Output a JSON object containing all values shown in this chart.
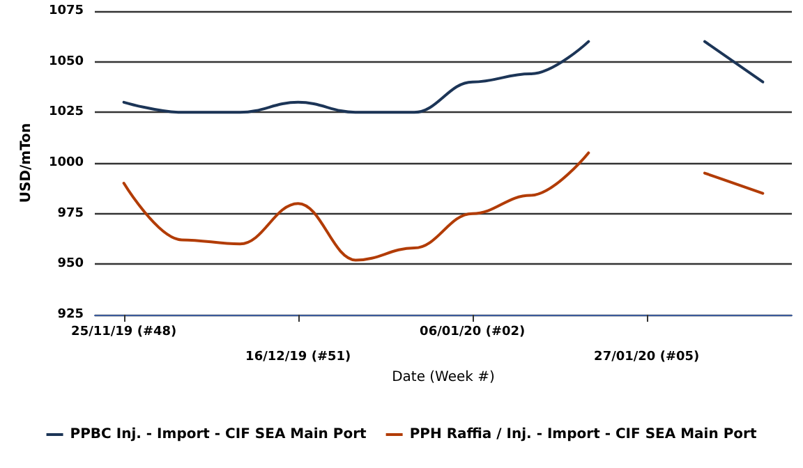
{
  "chart_data": {
    "type": "line",
    "xlabel": "Date (Week #)",
    "ylabel": "USD/mTon",
    "categories": [
      "25/11/19 (#48)",
      null,
      null,
      "16/12/19 (#51)",
      null,
      null,
      "06/01/20 (#02)",
      null,
      null,
      "27/01/20 (#05)",
      null,
      null
    ],
    "series": [
      {
        "name": "PPBC Inj. - Import - CIF SEA Main Port",
        "color": "#1c3557",
        "values": [
          1030,
          1025,
          1025,
          1030,
          1025,
          1025,
          1040,
          1044,
          1060,
          null,
          1060,
          1040
        ]
      },
      {
        "name": "PPH Raffia / Inj. - Import - CIF SEA Main Port",
        "color": "#b23c06",
        "values": [
          990,
          962,
          960,
          980,
          952,
          958,
          975,
          984,
          1005,
          null,
          995,
          985
        ]
      }
    ],
    "ylim": [
      925,
      1075
    ],
    "yticks": [
      925,
      950,
      975,
      1000,
      1025,
      1050,
      1075
    ],
    "grid": "y",
    "legend": "bottom",
    "marker": "none",
    "line_style": "solid"
  }
}
